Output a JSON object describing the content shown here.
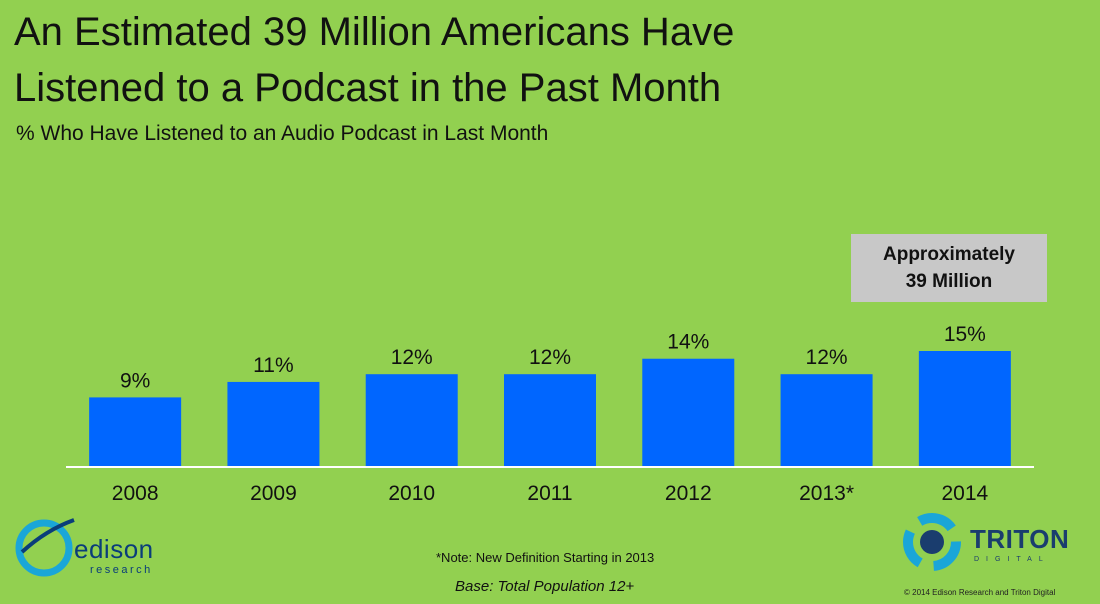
{
  "header": {
    "title_line1": "An Estimated 39 Million Americans Have",
    "title_line2": "Listened to a Podcast in the Past Month",
    "subtitle": "% Who Have Listened to an Audio Podcast in Last Month"
  },
  "callout": {
    "line1": "Approximately",
    "line2": "39 Million"
  },
  "footer": {
    "note": "*Note: New Definition Starting in 2013",
    "base": "Base: Total Population 12+",
    "copyright": "© 2014 Edison Research and Triton Digital"
  },
  "logos": {
    "edison_name": "edison",
    "edison_sub": "research",
    "triton_name": "TRITON",
    "triton_sub": "DIGITAL"
  },
  "colors": {
    "background": "#92d050",
    "bar": "#0066ff",
    "callout": "#c8c8c8"
  },
  "chart_data": {
    "type": "bar",
    "title": "An Estimated 39 Million Americans Have Listened to a Podcast in the Past Month",
    "subtitle": "% Who Have Listened to an Audio Podcast in Last Month",
    "categories": [
      "2008",
      "2009",
      "2010",
      "2011",
      "2012",
      "2013*",
      "2014"
    ],
    "values": [
      9,
      11,
      12,
      12,
      14,
      12,
      15
    ],
    "data_labels": [
      "9%",
      "11%",
      "12%",
      "12%",
      "14%",
      "12%",
      "15%"
    ],
    "unit": "%",
    "ylim": [
      0,
      30
    ],
    "grid": false,
    "legend": "none"
  }
}
